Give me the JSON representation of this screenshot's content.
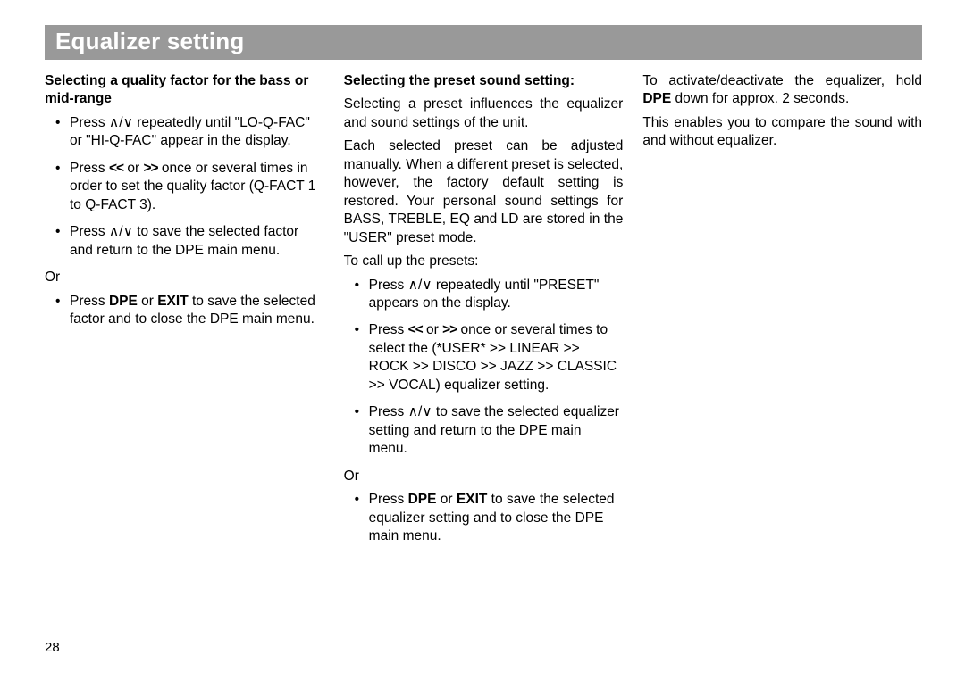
{
  "title": "Equalizer setting",
  "page_number": "28",
  "col1": {
    "subhead": "Selecting a quality factor for the bass or mid-range",
    "b1": "Press ∧/∨ repeatedly until \"LO-Q-FAC\" or \"HI-Q-FAC\" appear in the display.",
    "b2a": "Press ",
    "b2b": "<<",
    "b2c": " or ",
    "b2d": ">>",
    "b2e": " once or several times in order to set the quality factor (Q-FACT 1 to Q-FACT 3).",
    "b3": "Press ∧/∨ to save the selected factor and return to the DPE main menu.",
    "or": "Or",
    "b4a": "Press ",
    "b4b": "DPE",
    "b4c": " or ",
    "b4d": "EXIT",
    "b4e": " to save the selected factor and to close the DPE main menu."
  },
  "col2": {
    "subhead": "Selecting the preset sound setting:",
    "p1": "Selecting a preset influences the equalizer and sound settings of the unit.",
    "p2": "Each selected preset can be adjusted manually. When a different preset is selected, however, the factory default setting is restored. Your personal sound settings for BASS, TREBLE, EQ and LD are stored in the \"USER\" preset mode.",
    "p3": "To call up the presets:",
    "b1": "Press ∧/∨ repeatedly until \"PRESET\" appears on the display.",
    "b2a": "Press ",
    "b2b": "<<",
    "b2c": " or ",
    "b2d": ">>",
    "b2e": " once or several times to select the (*USER* >>  LINEAR >>  ROCK >>  DISCO >>  JAZZ >>  CLASSIC >>  VOCAL) equalizer setting.",
    "b3": "Press ∧/∨ to save the selected equalizer setting and return to the DPE main menu.",
    "or": "Or",
    "b4a": "Press ",
    "b4b": "DPE",
    "b4c": " or ",
    "b4d": "EXIT",
    "b4e": " to save the selected equalizer setting and to close the DPE main menu."
  },
  "col3": {
    "p1a": "To activate/deactivate the equalizer, hold ",
    "p1b": "DPE",
    "p1c": " down for approx. 2 seconds.",
    "p2": "This enables you to compare the sound with and without equalizer."
  }
}
